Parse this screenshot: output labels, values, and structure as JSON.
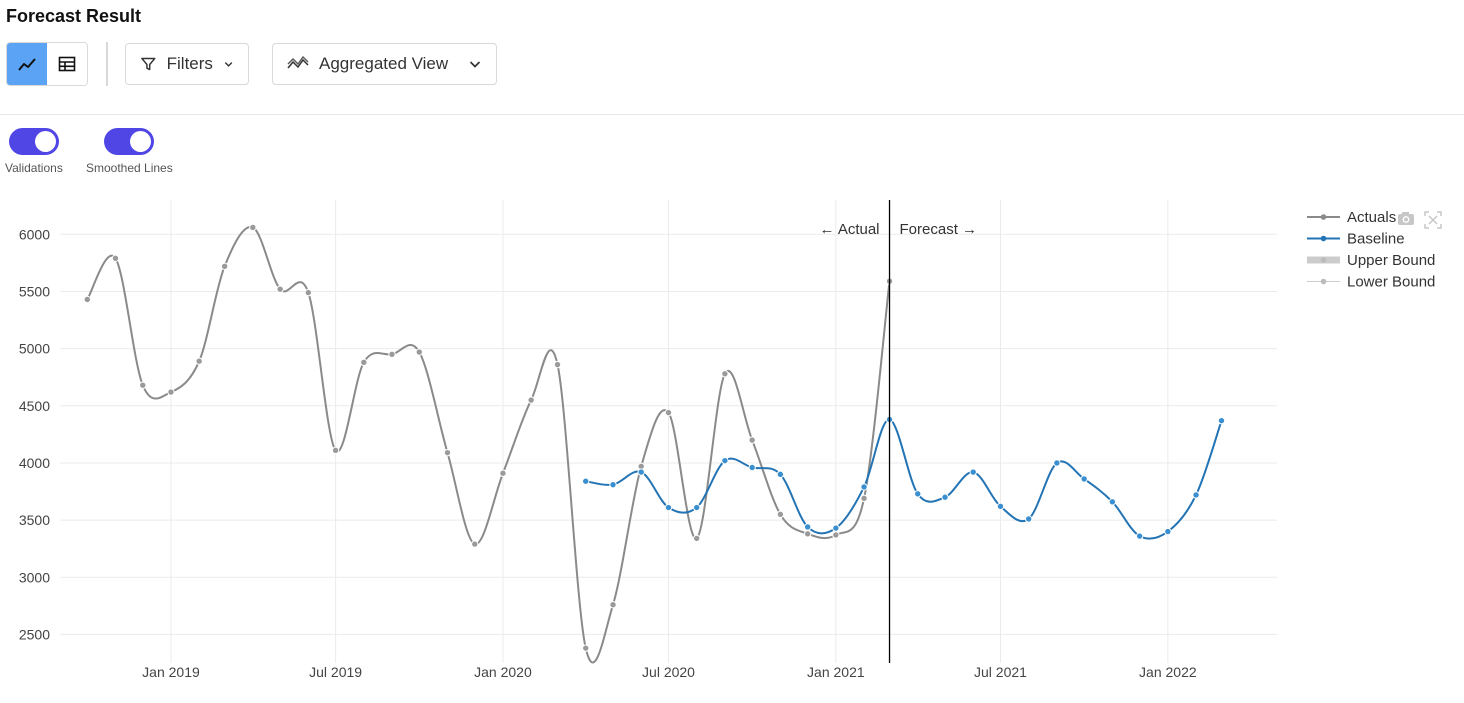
{
  "header": {
    "title": "Forecast Result"
  },
  "toolbar": {
    "chart_view_icon": "line-chart-icon",
    "table_view_icon": "table-icon",
    "filters_label": "Filters",
    "view_label": "Aggregated View"
  },
  "toggles": [
    {
      "label": "Validations",
      "on": true
    },
    {
      "label": "Smoothed Lines",
      "on": true
    }
  ],
  "colors": {
    "accent": "#5046e5",
    "active_button": "#5ba3f5",
    "actuals": "#8a8a8a",
    "baseline": "#2374b5"
  },
  "chart_data": {
    "type": "line",
    "x_axis": {
      "type": "date",
      "range": [
        "2018-09-01",
        "2022-05-01"
      ],
      "tick_labels": [
        "Jan 2019",
        "Jul 2019",
        "Jan 2020",
        "Jul 2020",
        "Jan 2021",
        "Jul 2021",
        "Jan 2022"
      ]
    },
    "y_axis": {
      "range": [
        2250,
        6300
      ],
      "tick_labels": [
        "2500",
        "3000",
        "3500",
        "4000",
        "4500",
        "5000",
        "5500",
        "6000"
      ]
    },
    "grid": true,
    "legend_position": "top-right",
    "annotations": {
      "actual_label": "← Actual",
      "forecast_label": "Forecast →",
      "split_date": "2021-03-01"
    },
    "legend": [
      "Actuals",
      "Baseline",
      "Upper Bound",
      "Lower Bound"
    ],
    "series": [
      {
        "name": "Actuals",
        "x": [
          "2018-10",
          "2018-11",
          "2018-12",
          "2019-01",
          "2019-02",
          "2019-03",
          "2019-04",
          "2019-05",
          "2019-06",
          "2019-07",
          "2019-08",
          "2019-09",
          "2019-10",
          "2019-11",
          "2019-12",
          "2020-01",
          "2020-02",
          "2020-03",
          "2020-04",
          "2020-05",
          "2020-06",
          "2020-07",
          "2020-08",
          "2020-09",
          "2020-10",
          "2020-11",
          "2020-12",
          "2021-01",
          "2021-02",
          "2021-03"
        ],
        "y": [
          5430,
          5790,
          4680,
          4620,
          4890,
          5720,
          6060,
          5520,
          5490,
          4110,
          4880,
          4950,
          4970,
          4090,
          3290,
          3910,
          4550,
          4860,
          2380,
          2760,
          3970,
          4440,
          3340,
          4780,
          4200,
          3550,
          3380,
          3370,
          3690,
          5590
        ]
      },
      {
        "name": "Baseline",
        "x": [
          "2020-04",
          "2020-05",
          "2020-06",
          "2020-07",
          "2020-08",
          "2020-09",
          "2020-10",
          "2020-11",
          "2020-12",
          "2021-01",
          "2021-02",
          "2021-03",
          "2021-04",
          "2021-05",
          "2021-06",
          "2021-07",
          "2021-08",
          "2021-09",
          "2021-10",
          "2021-11",
          "2021-12",
          "2022-01",
          "2022-02",
          "2022-03"
        ],
        "y": [
          3840,
          3810,
          3920,
          3610,
          3610,
          4020,
          3960,
          3900,
          3440,
          3430,
          3790,
          4380,
          3730,
          3700,
          3920,
          3620,
          3510,
          4000,
          3860,
          3660,
          3360,
          3400,
          3720,
          4370
        ]
      }
    ]
  }
}
